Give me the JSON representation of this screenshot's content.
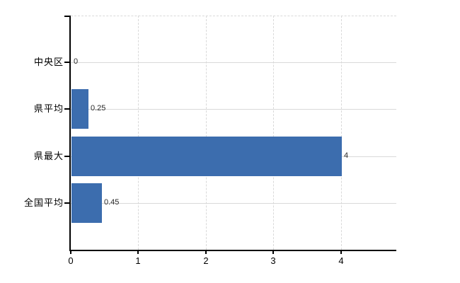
{
  "chart_data": {
    "type": "bar",
    "orientation": "horizontal",
    "title": "",
    "xlabel": "",
    "ylabel": "",
    "categories": [
      "中央区",
      "県平均",
      "県最大",
      "全国平均"
    ],
    "values": [
      0,
      0.25,
      4,
      0.45
    ],
    "value_labels": [
      "0",
      "0.25",
      "4",
      "0.45"
    ],
    "x_ticks": [
      0,
      1,
      2,
      3,
      4
    ],
    "x_tick_labels": [
      "0",
      "1",
      "2",
      "3",
      "4"
    ],
    "xlim": [
      0,
      4.82
    ],
    "grid": true,
    "legend": false,
    "bar_color": "#3c6dae",
    "gridline_color": "#d9d9d9",
    "axis_color": "#000000",
    "tick_label_color": "#000000",
    "value_label_color": "#2b2b2b",
    "background_color": "#ffffff"
  }
}
